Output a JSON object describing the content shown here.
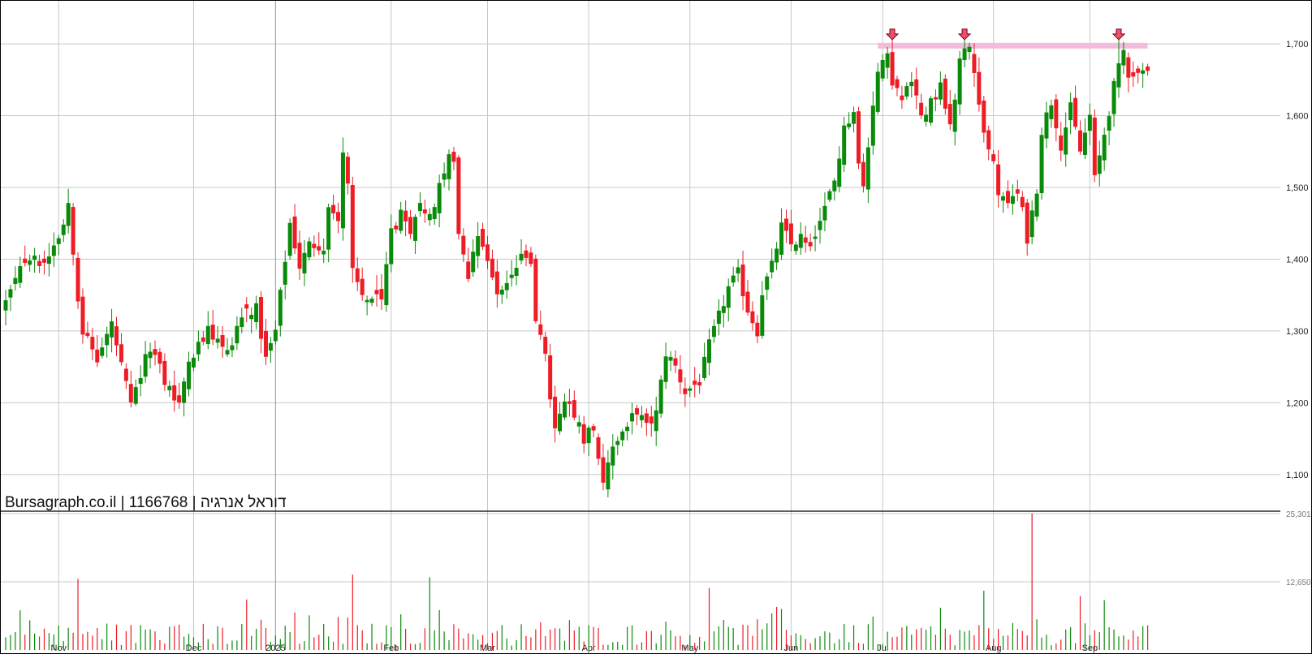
{
  "watermark": "Bursagraph.co.il | 1166768 | דוראל אנרגיה",
  "colors": {
    "up": "#0a8a0a",
    "down": "#ee1c25",
    "grid": "#c8c8c8",
    "resistance_band": "#f4bcdc",
    "marker": "#f0506e"
  },
  "chart_data": {
    "type": "candlestick",
    "price_axis": {
      "min": 1050,
      "max": 1760,
      "ticks": [
        1100,
        1200,
        1300,
        1400,
        1500,
        1600,
        1700
      ],
      "tick_labels": [
        "1,100",
        "1,200",
        "1,300",
        "1,400",
        "1,500",
        "1,600",
        "1,700"
      ]
    },
    "volume_axis": {
      "min": 0,
      "max": 25301,
      "ticks": [
        12650,
        25301
      ],
      "tick_labels": [
        "12,650",
        "25,301"
      ]
    },
    "x_labels": [
      {
        "label": "Nov",
        "bar": 11
      },
      {
        "label": "Dec",
        "bar": 39
      },
      {
        "label": "2025",
        "bar": 56,
        "major": true
      },
      {
        "label": "Feb",
        "bar": 80
      },
      {
        "label": "Mar",
        "bar": 100
      },
      {
        "label": "Apr",
        "bar": 121
      },
      {
        "label": "May",
        "bar": 142
      },
      {
        "label": "Jun",
        "bar": 163
      },
      {
        "label": "Jul",
        "bar": 182
      },
      {
        "label": "Aug",
        "bar": 205
      },
      {
        "label": "Sep",
        "bar": 225
      }
    ],
    "resistance": {
      "price": 1698,
      "from_bar": 181,
      "to_bar": 237
    },
    "markers": [
      {
        "bar": 184,
        "type": "arrow-down"
      },
      {
        "bar": 199,
        "type": "arrow-down"
      },
      {
        "bar": 231,
        "type": "arrow-down"
      }
    ],
    "anchors": [
      {
        "bar": 0,
        "close": 1340
      },
      {
        "bar": 4,
        "close": 1400
      },
      {
        "bar": 8,
        "close": 1395
      },
      {
        "bar": 12,
        "close": 1450
      },
      {
        "bar": 13,
        "close": 1480
      },
      {
        "bar": 15,
        "close": 1350
      },
      {
        "bar": 16,
        "close": 1300
      },
      {
        "bar": 19,
        "close": 1260
      },
      {
        "bar": 22,
        "close": 1310
      },
      {
        "bar": 24,
        "close": 1250
      },
      {
        "bar": 26,
        "close": 1195
      },
      {
        "bar": 30,
        "close": 1280
      },
      {
        "bar": 33,
        "close": 1230
      },
      {
        "bar": 36,
        "close": 1200
      },
      {
        "bar": 38,
        "close": 1260
      },
      {
        "bar": 42,
        "close": 1300
      },
      {
        "bar": 46,
        "close": 1270
      },
      {
        "bar": 49,
        "close": 1320
      },
      {
        "bar": 52,
        "close": 1330
      },
      {
        "bar": 54,
        "close": 1260
      },
      {
        "bar": 56,
        "close": 1300
      },
      {
        "bar": 57,
        "close": 1350
      },
      {
        "bar": 59,
        "close": 1450
      },
      {
        "bar": 61,
        "close": 1390
      },
      {
        "bar": 63,
        "close": 1420
      },
      {
        "bar": 66,
        "close": 1420
      },
      {
        "bar": 67,
        "close": 1470
      },
      {
        "bar": 69,
        "close": 1460
      },
      {
        "bar": 70,
        "close": 1550
      },
      {
        "bar": 71,
        "close": 1500
      },
      {
        "bar": 72,
        "close": 1380
      },
      {
        "bar": 74,
        "close": 1350
      },
      {
        "bar": 78,
        "close": 1340
      },
      {
        "bar": 80,
        "close": 1440
      },
      {
        "bar": 82,
        "close": 1460
      },
      {
        "bar": 84,
        "close": 1430
      },
      {
        "bar": 86,
        "close": 1480
      },
      {
        "bar": 88,
        "close": 1460
      },
      {
        "bar": 90,
        "close": 1500
      },
      {
        "bar": 92,
        "close": 1555
      },
      {
        "bar": 93,
        "close": 1530
      },
      {
        "bar": 94,
        "close": 1440
      },
      {
        "bar": 96,
        "close": 1380
      },
      {
        "bar": 98,
        "close": 1440
      },
      {
        "bar": 100,
        "close": 1400
      },
      {
        "bar": 102,
        "close": 1350
      },
      {
        "bar": 105,
        "close": 1380
      },
      {
        "bar": 107,
        "close": 1400
      },
      {
        "bar": 109,
        "close": 1400
      },
      {
        "bar": 110,
        "close": 1320
      },
      {
        "bar": 112,
        "close": 1260
      },
      {
        "bar": 114,
        "close": 1160
      },
      {
        "bar": 116,
        "close": 1200
      },
      {
        "bar": 118,
        "close": 1180
      },
      {
        "bar": 120,
        "close": 1150
      },
      {
        "bar": 122,
        "close": 1170
      },
      {
        "bar": 124,
        "close": 1080
      },
      {
        "bar": 126,
        "close": 1140
      },
      {
        "bar": 128,
        "close": 1160
      },
      {
        "bar": 131,
        "close": 1190
      },
      {
        "bar": 133,
        "close": 1165
      },
      {
        "bar": 135,
        "close": 1185
      },
      {
        "bar": 137,
        "close": 1270
      },
      {
        "bar": 139,
        "close": 1250
      },
      {
        "bar": 141,
        "close": 1215
      },
      {
        "bar": 144,
        "close": 1230
      },
      {
        "bar": 146,
        "close": 1280
      },
      {
        "bar": 148,
        "close": 1320
      },
      {
        "bar": 150,
        "close": 1360
      },
      {
        "bar": 152,
        "close": 1380
      },
      {
        "bar": 154,
        "close": 1330
      },
      {
        "bar": 156,
        "close": 1300
      },
      {
        "bar": 157,
        "close": 1355
      },
      {
        "bar": 159,
        "close": 1390
      },
      {
        "bar": 161,
        "close": 1445
      },
      {
        "bar": 163,
        "close": 1420
      },
      {
        "bar": 165,
        "close": 1430
      },
      {
        "bar": 167,
        "close": 1410
      },
      {
        "bar": 168,
        "close": 1440
      },
      {
        "bar": 170,
        "close": 1470
      },
      {
        "bar": 172,
        "close": 1510
      },
      {
        "bar": 174,
        "close": 1580
      },
      {
        "bar": 176,
        "close": 1610
      },
      {
        "bar": 177,
        "close": 1530
      },
      {
        "bar": 178,
        "close": 1500
      },
      {
        "bar": 179,
        "close": 1560
      },
      {
        "bar": 180,
        "close": 1620
      },
      {
        "bar": 181,
        "close": 1660
      },
      {
        "bar": 183,
        "close": 1680
      },
      {
        "bar": 184,
        "close": 1650
      },
      {
        "bar": 186,
        "close": 1620
      },
      {
        "bar": 188,
        "close": 1650
      },
      {
        "bar": 190,
        "close": 1600
      },
      {
        "bar": 192,
        "close": 1620
      },
      {
        "bar": 194,
        "close": 1640
      },
      {
        "bar": 196,
        "close": 1595
      },
      {
        "bar": 197,
        "close": 1630
      },
      {
        "bar": 198,
        "close": 1680
      },
      {
        "bar": 200,
        "close": 1695
      },
      {
        "bar": 201,
        "close": 1660
      },
      {
        "bar": 203,
        "close": 1580
      },
      {
        "bar": 205,
        "close": 1530
      },
      {
        "bar": 206,
        "close": 1490
      },
      {
        "bar": 208,
        "close": 1470
      },
      {
        "bar": 210,
        "close": 1500
      },
      {
        "bar": 212,
        "close": 1430
      },
      {
        "bar": 214,
        "close": 1500
      },
      {
        "bar": 215,
        "close": 1580
      },
      {
        "bar": 217,
        "close": 1620
      },
      {
        "bar": 219,
        "close": 1560
      },
      {
        "bar": 221,
        "close": 1610
      },
      {
        "bar": 223,
        "close": 1550
      },
      {
        "bar": 225,
        "close": 1600
      },
      {
        "bar": 226,
        "close": 1510
      },
      {
        "bar": 228,
        "close": 1575
      },
      {
        "bar": 230,
        "close": 1640
      },
      {
        "bar": 232,
        "close": 1690
      },
      {
        "bar": 233,
        "close": 1660
      }
    ],
    "spikes": [
      {
        "bar": 15,
        "vol": 13200,
        "dir": "down"
      },
      {
        "bar": 72,
        "vol": 14000,
        "dir": "down"
      },
      {
        "bar": 88,
        "vol": 13500,
        "dir": "up"
      },
      {
        "bar": 146,
        "vol": 11500,
        "dir": "down"
      },
      {
        "bar": 160,
        "vol": 8000,
        "dir": "down"
      },
      {
        "bar": 203,
        "vol": 11000,
        "dir": "up"
      },
      {
        "bar": 213,
        "vol": 25301,
        "dir": "down"
      },
      {
        "bar": 223,
        "vol": 10000,
        "dir": "down"
      }
    ]
  }
}
